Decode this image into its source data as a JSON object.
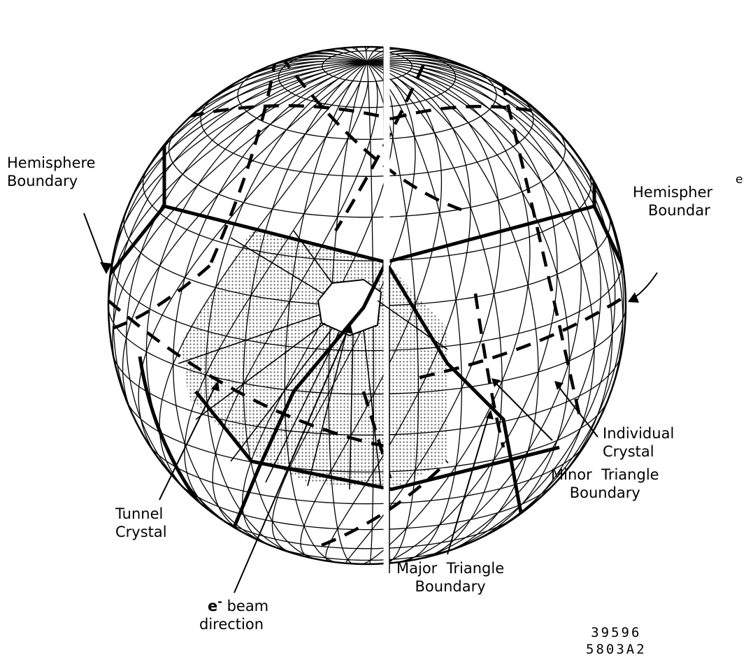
{
  "labels": {
    "hemisphere_left": [
      "Hemisphere",
      "Boundary"
    ],
    "hemisphere_right": [
      "Hemispher",
      "Boundar"
    ],
    "hemisphere_right_e": "e",
    "individual_crystal": [
      "Individual",
      "Crystal"
    ],
    "minor_triangle": [
      "Minor  Triangle",
      "Boundary"
    ],
    "tunnel_crystal": [
      "Tunnel",
      "Crystal"
    ],
    "major_triangle": [
      "Major  Triangle",
      "Boundary"
    ],
    "beam": {
      "symbol": "e",
      "superscript": "-",
      "rest": " beam",
      "line2": "direction"
    }
  },
  "figure_code": [
    "39596",
    "5803A2"
  ],
  "colors": {
    "ink": "#000000",
    "shade": "#c8c8c8",
    "paper": "#ffffff"
  }
}
